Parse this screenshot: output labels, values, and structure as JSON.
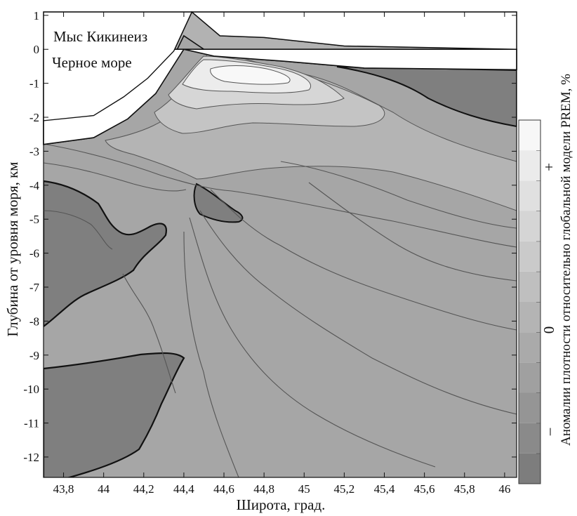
{
  "chart_data": {
    "type": "heatmap",
    "title": "",
    "xlabel": "Широта, град.",
    "ylabel": "Глубина от уровня моря, км",
    "xlim": [
      43.7,
      46.06
    ],
    "ylim": [
      -12.6,
      1.1
    ],
    "x_ticks": [
      43.8,
      44,
      44.2,
      44.4,
      44.6,
      44.8,
      45,
      45.2,
      45.4,
      45.6,
      45.8,
      46
    ],
    "x_tick_labels": [
      "43,8",
      "44",
      "44,2",
      "44,4",
      "44,6",
      "44,8",
      "45",
      "45,2",
      "45,4",
      "45,6",
      "45,8",
      "46"
    ],
    "y_ticks": [
      1,
      0,
      -1,
      -2,
      -3,
      -4,
      -5,
      -6,
      -7,
      -8,
      -9,
      -10,
      -11,
      -12
    ],
    "y_tick_labels": [
      "1",
      "0",
      "-1",
      "-2",
      "-3",
      "-4",
      "-5",
      "-6",
      "-7",
      "-8",
      "-9",
      "-10",
      "-11",
      "-12"
    ],
    "annotations": [
      "Мыс Кикинеиз",
      "Черное море"
    ],
    "surface_profile": [
      [
        43.7,
        -2.1
      ],
      [
        43.95,
        -1.95
      ],
      [
        44.1,
        -1.4
      ],
      [
        44.22,
        -0.85
      ],
      [
        44.35,
        -0.05
      ],
      [
        44.44,
        1.1
      ],
      [
        44.58,
        0.4
      ],
      [
        44.8,
        0.35
      ],
      [
        45.2,
        0.1
      ],
      [
        46.06,
        0.0
      ]
    ],
    "sea_floor_profile": [
      [
        43.7,
        -2.8
      ],
      [
        43.95,
        -2.6
      ],
      [
        44.12,
        -2.05
      ],
      [
        44.26,
        -1.3
      ],
      [
        44.4,
        0.4
      ],
      [
        44.55,
        -0.2
      ],
      [
        44.9,
        -0.35
      ],
      [
        45.3,
        -0.55
      ],
      [
        46.06,
        -0.6
      ]
    ],
    "colorbar": {
      "title": "Аномалии плотности относительно глобальной модели PREM, %",
      "plus_label": "+",
      "zero_label": "0",
      "minus_label": "–",
      "levels": 12,
      "colors": [
        "#7d7d7d",
        "#8a8a8a",
        "#959595",
        "#a0a0a0",
        "#aaaaaa",
        "#b4b4b4",
        "#bfbfbf",
        "#cacaca",
        "#d5d5d5",
        "#e0e0e0",
        "#ebebeb",
        "#f7f7f7"
      ]
    },
    "colors": {
      "background": "#a6a6a6",
      "low_anomaly": "#7f7f7f",
      "crust_band": "#b2b2b2",
      "contour": "#555555",
      "outline": "#111111"
    }
  }
}
